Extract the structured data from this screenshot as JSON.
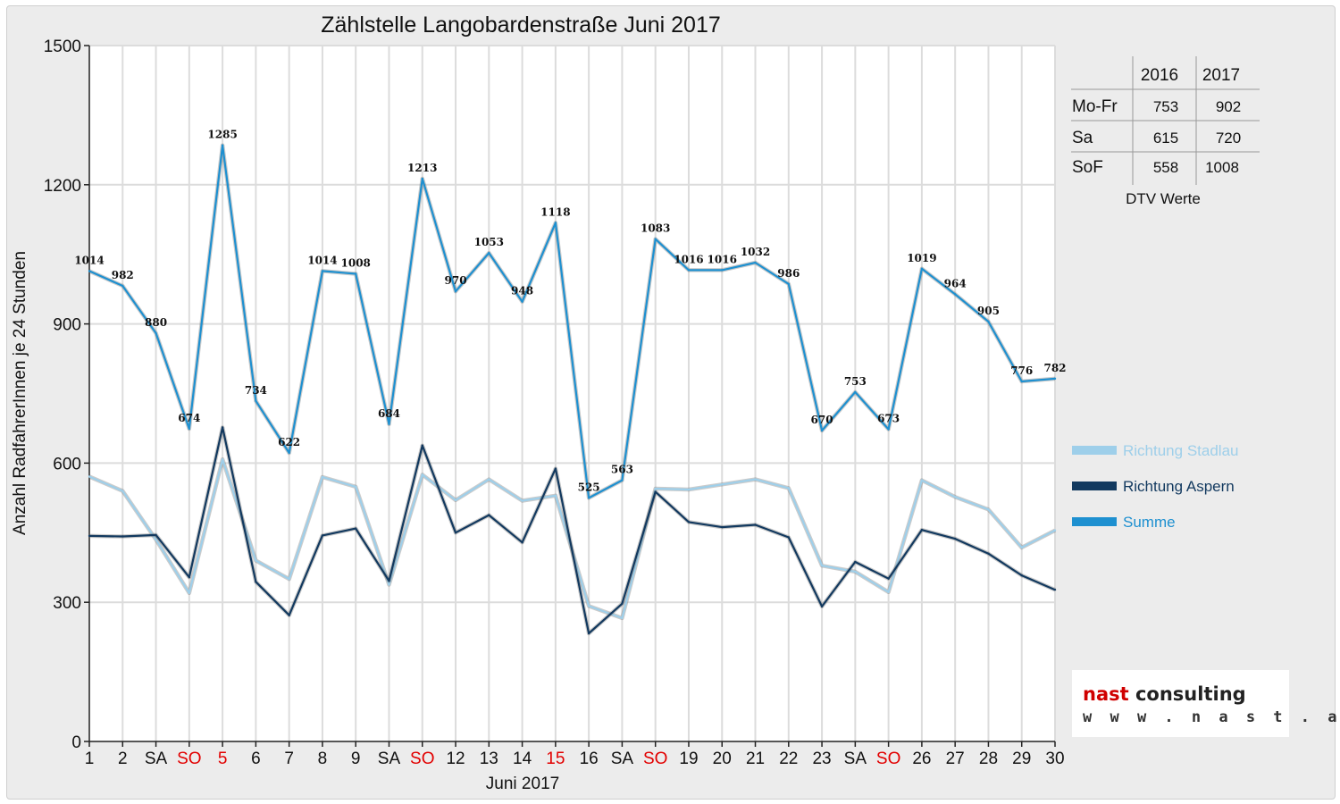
{
  "chart_data": {
    "type": "line",
    "title": "Zählstelle Langobardenstraße Juni 2017",
    "xlabel": "Juni 2017",
    "ylabel": "Anzahl RadfahrerInnen je 24 Stunden",
    "ylim": [
      0,
      1500
    ],
    "yticks": [
      "0",
      "300",
      "600",
      "900",
      "1200",
      "1500"
    ],
    "grid": true,
    "legend_position": "right",
    "categories": [
      "1",
      "2",
      "SA",
      "SO",
      "5",
      "6",
      "7",
      "8",
      "9",
      "SA",
      "SO",
      "12",
      "13",
      "14",
      "15",
      "16",
      "SA",
      "SO",
      "19",
      "20",
      "21",
      "22",
      "23",
      "SA",
      "SO",
      "26",
      "27",
      "28",
      "29",
      "30"
    ],
    "red_categories": [
      3,
      4,
      10,
      14,
      17,
      24
    ],
    "series": [
      {
        "name": "Richtung Stadlau",
        "color": "#9ecfea",
        "values": [
          571,
          540,
          435,
          320,
          608,
          390,
          350,
          570,
          549,
          338,
          575,
          520,
          565,
          519,
          530,
          292,
          266,
          545,
          543,
          554,
          565,
          546,
          379,
          366,
          322,
          563,
          527,
          500,
          418,
          455
        ]
      },
      {
        "name": "Richtung Aspern",
        "color": "#12395f",
        "values": [
          443,
          442,
          445,
          354,
          677,
          344,
          272,
          444,
          459,
          346,
          638,
          450,
          488,
          429,
          588,
          233,
          297,
          538,
          473,
          462,
          467,
          440,
          291,
          387,
          351,
          456,
          437,
          405,
          358,
          327
        ]
      },
      {
        "name": "Summe",
        "color": "#1e90d0",
        "values": [
          1014,
          982,
          880,
          674,
          1285,
          734,
          622,
          1014,
          1008,
          684,
          1213,
          970,
          1053,
          948,
          1118,
          525,
          563,
          1083,
          1016,
          1016,
          1032,
          986,
          670,
          753,
          673,
          1019,
          964,
          905,
          776,
          782
        ]
      }
    ]
  },
  "table": {
    "header": [
      "",
      "2016",
      "2017"
    ],
    "rows": [
      [
        "Mo-Fr",
        "753",
        "902"
      ],
      [
        "Sa",
        "615",
        "720"
      ],
      [
        "SoF",
        "558",
        "1008"
      ]
    ],
    "caption": "DTV Werte"
  },
  "logo": {
    "prefix": "nast",
    "suffix": " consulting",
    "url": "w w w . n a s t . a t"
  }
}
